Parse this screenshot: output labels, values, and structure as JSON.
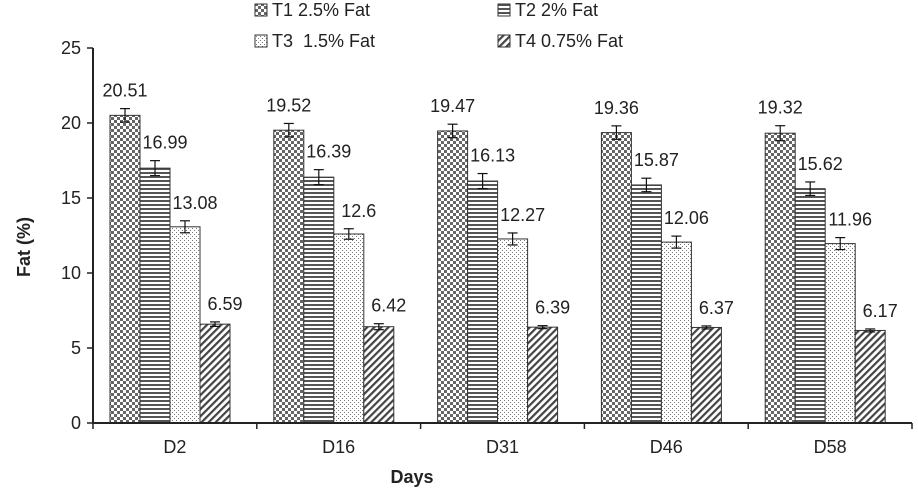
{
  "chart_data": {
    "type": "bar",
    "title": "",
    "xlabel": "Days",
    "ylabel": "Fat (%)",
    "ylim": [
      0,
      25
    ],
    "yticks": [
      0,
      5,
      10,
      15,
      20,
      25
    ],
    "categories": [
      "D2",
      "D16",
      "D31",
      "D46",
      "D58"
    ],
    "series": [
      {
        "name": "T1 2.5% Fat",
        "pattern": "checker",
        "values": [
          20.51,
          19.52,
          19.47,
          19.36,
          19.32
        ],
        "errors": [
          0.45,
          0.45,
          0.45,
          0.45,
          0.5
        ]
      },
      {
        "name": "T2 2% Fat",
        "pattern": "hlines",
        "values": [
          16.99,
          16.39,
          16.13,
          15.87,
          15.62
        ],
        "errors": [
          0.5,
          0.5,
          0.5,
          0.45,
          0.45
        ]
      },
      {
        "name": "T3  1.5% Fat",
        "pattern": "dots",
        "values": [
          13.08,
          12.6,
          12.27,
          12.06,
          11.96
        ],
        "errors": [
          0.4,
          0.35,
          0.4,
          0.4,
          0.4
        ]
      },
      {
        "name": "T4 0.75% Fat",
        "pattern": "diagonal",
        "values": [
          6.59,
          6.42,
          6.39,
          6.37,
          6.17
        ],
        "errors": [
          0.15,
          0.2,
          0.1,
          0.1,
          0.1
        ]
      }
    ],
    "data_labels": [
      [
        "20.51",
        "19.52",
        "19.47",
        "19.36",
        "19.32"
      ],
      [
        "16.99",
        "16.39",
        "16.13",
        "15.87",
        "15.62"
      ],
      [
        "13.08",
        "12.6",
        "12.27",
        "12.06",
        "11.96"
      ],
      [
        "6.59",
        "6.42",
        "6.39",
        "6.37",
        "6.17"
      ]
    ],
    "legend_position": "top",
    "grid": false,
    "colors": {
      "bar_fill": "#ffffff",
      "pattern_ink": "#555555",
      "axis": "#222222"
    }
  }
}
